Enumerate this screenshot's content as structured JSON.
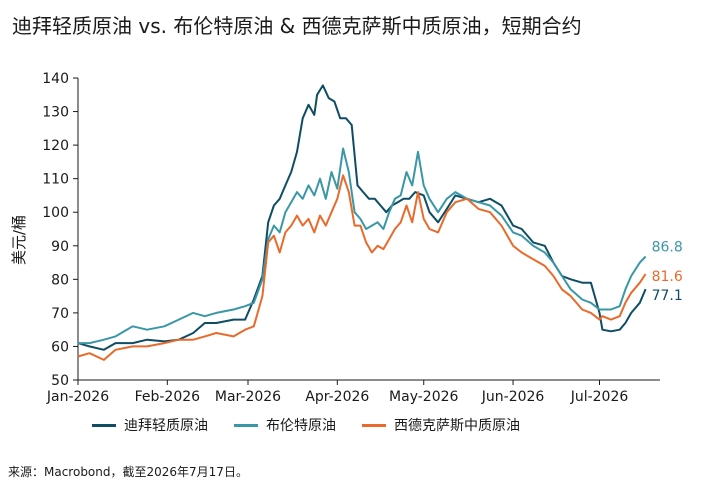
{
  "chart_data": {
    "type": "line",
    "title": "迪拜轻质原油 vs. 布伦特原油 & 西德克萨斯中质原油，短期合约",
    "ylabel": "美元/桶",
    "xlabel": "",
    "ylim": [
      50,
      140
    ],
    "yticks": [
      50,
      60,
      70,
      80,
      90,
      100,
      110,
      120,
      130,
      140
    ],
    "xlim": [
      "2026-01-01",
      "2026-07-22"
    ],
    "xticks": [
      {
        "date": "2026-01-01",
        "label": "Jan-2026"
      },
      {
        "date": "2026-02-01",
        "label": "Feb-2026"
      },
      {
        "date": "2026-03-01",
        "label": "Mar-2026"
      },
      {
        "date": "2026-04-01",
        "label": "Apr-2026"
      },
      {
        "date": "2026-05-01",
        "label": "May-2026"
      },
      {
        "date": "2026-06-01",
        "label": "Jun-2026"
      },
      {
        "date": "2026-07-01",
        "label": "Jul-2026"
      }
    ],
    "grid": false,
    "legend_position": "bottom",
    "series": [
      {
        "name": "迪拜轻质原油",
        "color": "#0e4d64",
        "end_label": "77.1",
        "points": [
          [
            "2026-01-01",
            61
          ],
          [
            "2026-01-05",
            60
          ],
          [
            "2026-01-10",
            59
          ],
          [
            "2026-01-14",
            61
          ],
          [
            "2026-01-20",
            61
          ],
          [
            "2026-01-25",
            62
          ],
          [
            "2026-01-31",
            61.5
          ],
          [
            "2026-02-05",
            62
          ],
          [
            "2026-02-10",
            64
          ],
          [
            "2026-02-14",
            67
          ],
          [
            "2026-02-18",
            67
          ],
          [
            "2026-02-24",
            68
          ],
          [
            "2026-02-28",
            68
          ],
          [
            "2026-03-03",
            74
          ],
          [
            "2026-03-06",
            81
          ],
          [
            "2026-03-08",
            97
          ],
          [
            "2026-03-10",
            102
          ],
          [
            "2026-03-12",
            104
          ],
          [
            "2026-03-14",
            108
          ],
          [
            "2026-03-16",
            112
          ],
          [
            "2026-03-18",
            118
          ],
          [
            "2026-03-20",
            128
          ],
          [
            "2026-03-22",
            132
          ],
          [
            "2026-03-24",
            129
          ],
          [
            "2026-03-25",
            135
          ],
          [
            "2026-03-27",
            137.8
          ],
          [
            "2026-03-29",
            134
          ],
          [
            "2026-03-31",
            133
          ],
          [
            "2026-04-02",
            128
          ],
          [
            "2026-04-04",
            128
          ],
          [
            "2026-04-06",
            126
          ],
          [
            "2026-04-08",
            108
          ],
          [
            "2026-04-10",
            106
          ],
          [
            "2026-04-12",
            104
          ],
          [
            "2026-04-14",
            104
          ],
          [
            "2026-04-16",
            102
          ],
          [
            "2026-04-18",
            100
          ],
          [
            "2026-04-20",
            102
          ],
          [
            "2026-04-22",
            103
          ],
          [
            "2026-04-24",
            104
          ],
          [
            "2026-04-26",
            104
          ],
          [
            "2026-04-28",
            106
          ],
          [
            "2026-05-01",
            105
          ],
          [
            "2026-05-03",
            100
          ],
          [
            "2026-05-06",
            97
          ],
          [
            "2026-05-09",
            101
          ],
          [
            "2026-05-12",
            105
          ],
          [
            "2026-05-16",
            104
          ],
          [
            "2026-05-20",
            103
          ],
          [
            "2026-05-24",
            104
          ],
          [
            "2026-05-28",
            102
          ],
          [
            "2026-06-01",
            96
          ],
          [
            "2026-06-04",
            95
          ],
          [
            "2026-06-08",
            91
          ],
          [
            "2026-06-12",
            90
          ],
          [
            "2026-06-15",
            85
          ],
          [
            "2026-06-18",
            81
          ],
          [
            "2026-06-21",
            80
          ],
          [
            "2026-06-25",
            79
          ],
          [
            "2026-06-28",
            79
          ],
          [
            "2026-07-01",
            70
          ],
          [
            "2026-07-02",
            65
          ],
          [
            "2026-07-05",
            64.5
          ],
          [
            "2026-07-08",
            65
          ],
          [
            "2026-07-10",
            67
          ],
          [
            "2026-07-12",
            70
          ],
          [
            "2026-07-15",
            73
          ],
          [
            "2026-07-17",
            77.1
          ]
        ]
      },
      {
        "name": "布伦特原油",
        "color": "#3a97a6",
        "end_label": "86.8",
        "points": [
          [
            "2026-01-01",
            61
          ],
          [
            "2026-01-05",
            61
          ],
          [
            "2026-01-10",
            62
          ],
          [
            "2026-01-14",
            63
          ],
          [
            "2026-01-20",
            66
          ],
          [
            "2026-01-25",
            65
          ],
          [
            "2026-01-31",
            66
          ],
          [
            "2026-02-05",
            68
          ],
          [
            "2026-02-10",
            70
          ],
          [
            "2026-02-14",
            69
          ],
          [
            "2026-02-18",
            70
          ],
          [
            "2026-02-24",
            71
          ],
          [
            "2026-02-28",
            72
          ],
          [
            "2026-03-03",
            73
          ],
          [
            "2026-03-06",
            80
          ],
          [
            "2026-03-08",
            92
          ],
          [
            "2026-03-10",
            96
          ],
          [
            "2026-03-12",
            94
          ],
          [
            "2026-03-14",
            100
          ],
          [
            "2026-03-16",
            103
          ],
          [
            "2026-03-18",
            106
          ],
          [
            "2026-03-20",
            104
          ],
          [
            "2026-03-22",
            108
          ],
          [
            "2026-03-24",
            105
          ],
          [
            "2026-03-26",
            110
          ],
          [
            "2026-03-28",
            104
          ],
          [
            "2026-03-30",
            112
          ],
          [
            "2026-04-01",
            107
          ],
          [
            "2026-04-03",
            119
          ],
          [
            "2026-04-05",
            112
          ],
          [
            "2026-04-07",
            100
          ],
          [
            "2026-04-09",
            98
          ],
          [
            "2026-04-11",
            95
          ],
          [
            "2026-04-13",
            96
          ],
          [
            "2026-04-15",
            97
          ],
          [
            "2026-04-17",
            95
          ],
          [
            "2026-04-19",
            100
          ],
          [
            "2026-04-21",
            104
          ],
          [
            "2026-04-23",
            105
          ],
          [
            "2026-04-25",
            112
          ],
          [
            "2026-04-27",
            108
          ],
          [
            "2026-04-29",
            118
          ],
          [
            "2026-05-01",
            108
          ],
          [
            "2026-05-03",
            104
          ],
          [
            "2026-05-06",
            100
          ],
          [
            "2026-05-09",
            104
          ],
          [
            "2026-05-12",
            106
          ],
          [
            "2026-05-16",
            104
          ],
          [
            "2026-05-20",
            103
          ],
          [
            "2026-05-24",
            102
          ],
          [
            "2026-05-28",
            99
          ],
          [
            "2026-06-01",
            94
          ],
          [
            "2026-06-04",
            93
          ],
          [
            "2026-06-08",
            90
          ],
          [
            "2026-06-12",
            88
          ],
          [
            "2026-06-15",
            85
          ],
          [
            "2026-06-18",
            81
          ],
          [
            "2026-06-21",
            77
          ],
          [
            "2026-06-25",
            74
          ],
          [
            "2026-06-28",
            73
          ],
          [
            "2026-07-01",
            71
          ],
          [
            "2026-07-02",
            71
          ],
          [
            "2026-07-05",
            71
          ],
          [
            "2026-07-08",
            72
          ],
          [
            "2026-07-10",
            77
          ],
          [
            "2026-07-12",
            81
          ],
          [
            "2026-07-15",
            85
          ],
          [
            "2026-07-17",
            86.8
          ]
        ]
      },
      {
        "name": "西德克萨斯中质原油",
        "color": "#e86a2c",
        "end_label": "81.6",
        "points": [
          [
            "2026-01-01",
            57
          ],
          [
            "2026-01-05",
            58
          ],
          [
            "2026-01-10",
            56
          ],
          [
            "2026-01-14",
            59
          ],
          [
            "2026-01-20",
            60
          ],
          [
            "2026-01-25",
            60
          ],
          [
            "2026-01-31",
            61
          ],
          [
            "2026-02-05",
            62
          ],
          [
            "2026-02-10",
            62
          ],
          [
            "2026-02-14",
            63
          ],
          [
            "2026-02-18",
            64
          ],
          [
            "2026-02-24",
            63
          ],
          [
            "2026-02-28",
            65
          ],
          [
            "2026-03-03",
            66
          ],
          [
            "2026-03-06",
            75
          ],
          [
            "2026-03-08",
            91
          ],
          [
            "2026-03-10",
            93
          ],
          [
            "2026-03-12",
            88
          ],
          [
            "2026-03-14",
            94
          ],
          [
            "2026-03-16",
            96
          ],
          [
            "2026-03-18",
            99
          ],
          [
            "2026-03-20",
            96
          ],
          [
            "2026-03-22",
            98
          ],
          [
            "2026-03-24",
            94
          ],
          [
            "2026-03-26",
            99
          ],
          [
            "2026-03-28",
            96
          ],
          [
            "2026-03-30",
            100
          ],
          [
            "2026-04-01",
            104
          ],
          [
            "2026-04-03",
            111
          ],
          [
            "2026-04-05",
            106
          ],
          [
            "2026-04-07",
            96
          ],
          [
            "2026-04-09",
            96
          ],
          [
            "2026-04-11",
            91
          ],
          [
            "2026-04-13",
            88
          ],
          [
            "2026-04-15",
            90
          ],
          [
            "2026-04-17",
            89
          ],
          [
            "2026-04-19",
            92
          ],
          [
            "2026-04-21",
            95
          ],
          [
            "2026-04-23",
            97
          ],
          [
            "2026-04-25",
            102
          ],
          [
            "2026-04-27",
            97
          ],
          [
            "2026-04-29",
            106
          ],
          [
            "2026-05-01",
            98
          ],
          [
            "2026-05-03",
            95
          ],
          [
            "2026-05-06",
            94
          ],
          [
            "2026-05-09",
            100
          ],
          [
            "2026-05-12",
            103
          ],
          [
            "2026-05-16",
            104
          ],
          [
            "2026-05-20",
            101
          ],
          [
            "2026-05-24",
            100
          ],
          [
            "2026-05-28",
            96
          ],
          [
            "2026-06-01",
            90
          ],
          [
            "2026-06-04",
            88
          ],
          [
            "2026-06-08",
            86
          ],
          [
            "2026-06-12",
            84
          ],
          [
            "2026-06-15",
            81
          ],
          [
            "2026-06-18",
            77
          ],
          [
            "2026-06-21",
            75
          ],
          [
            "2026-06-25",
            71
          ],
          [
            "2026-06-28",
            70
          ],
          [
            "2026-07-01",
            68
          ],
          [
            "2026-07-02",
            69
          ],
          [
            "2026-07-05",
            68
          ],
          [
            "2026-07-08",
            69
          ],
          [
            "2026-07-10",
            73
          ],
          [
            "2026-07-12",
            76
          ],
          [
            "2026-07-15",
            79
          ],
          [
            "2026-07-17",
            81.6
          ]
        ]
      }
    ]
  },
  "source": "来源：Macrobond，截至2026年7月17日。"
}
